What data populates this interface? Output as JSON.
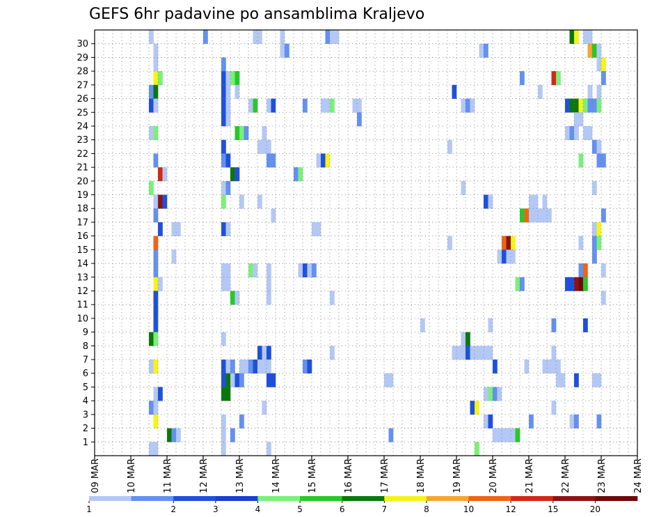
{
  "chart_data": {
    "type": "heatmap",
    "title": "GEFS 6hr padavine po ansamblima Kraljevo",
    "xlabel": "",
    "ylabel": "",
    "x_tick_labels": [
      "09 MAR",
      "10 MAR",
      "11 MAR",
      "12 MAR",
      "13 MAR",
      "14 MAR",
      "15 MAR",
      "16 MAR",
      "17 MAR",
      "18 MAR",
      "19 MAR",
      "20 MAR",
      "21 MAR",
      "22 MAR",
      "23 MAR",
      "24 MAR"
    ],
    "steps_per_day": 4,
    "y_tick_labels": [
      "1",
      "2",
      "3",
      "4",
      "5",
      "6",
      "7",
      "8",
      "9",
      "10",
      "11",
      "12",
      "13",
      "14",
      "15",
      "16",
      "17",
      "18",
      "19",
      "20",
      "21",
      "22",
      "23",
      "24",
      "25",
      "26",
      "27",
      "28",
      "29",
      "30"
    ],
    "grid": "dotted",
    "legend": {
      "position": "bottom",
      "boundaries": [
        "1",
        "2",
        "3",
        "4",
        "5",
        "6",
        "7",
        "8",
        "10",
        "12",
        "15",
        "20"
      ],
      "colors": [
        "#b4c8f5",
        "#6490f0",
        "#1e50dc",
        "#1b3fd0",
        "#7af07a",
        "#28c828",
        "#0a780a",
        "#f5f514",
        "#f5a532",
        "#f06414",
        "#d22814",
        "#8c1414",
        "#6e0a0a"
      ]
    },
    "cells": [
      [
        12,
        30,
        0
      ],
      [
        24,
        30,
        1
      ],
      [
        35,
        30,
        0
      ],
      [
        36,
        30,
        0
      ],
      [
        41,
        30,
        0
      ],
      [
        51,
        30,
        1
      ],
      [
        52,
        30,
        0
      ],
      [
        53,
        30,
        0
      ],
      [
        105,
        30,
        6
      ],
      [
        106,
        30,
        7
      ],
      [
        108,
        30,
        0
      ],
      [
        109,
        30,
        0
      ],
      [
        13,
        29,
        0
      ],
      [
        41,
        29,
        0
      ],
      [
        42,
        29,
        1
      ],
      [
        85,
        29,
        0
      ],
      [
        86,
        29,
        1
      ],
      [
        109,
        29,
        8
      ],
      [
        110,
        29,
        5
      ],
      [
        111,
        29,
        0
      ],
      [
        13,
        28,
        0
      ],
      [
        28,
        28,
        1
      ],
      [
        111,
        28,
        0
      ],
      [
        112,
        28,
        7
      ],
      [
        13,
        27,
        7
      ],
      [
        14,
        27,
        4
      ],
      [
        28,
        27,
        2
      ],
      [
        29,
        27,
        0
      ],
      [
        30,
        27,
        4
      ],
      [
        31,
        27,
        5
      ],
      [
        94,
        27,
        1
      ],
      [
        101,
        27,
        10
      ],
      [
        102,
        27,
        4
      ],
      [
        112,
        27,
        1
      ],
      [
        12,
        26,
        1
      ],
      [
        13,
        26,
        6
      ],
      [
        28,
        26,
        2
      ],
      [
        29,
        26,
        0
      ],
      [
        31,
        26,
        0
      ],
      [
        79,
        26,
        2
      ],
      [
        98,
        26,
        0
      ],
      [
        109,
        26,
        0
      ],
      [
        111,
        26,
        0
      ],
      [
        12,
        25,
        2
      ],
      [
        13,
        25,
        0
      ],
      [
        28,
        25,
        2
      ],
      [
        29,
        25,
        0
      ],
      [
        34,
        25,
        0
      ],
      [
        35,
        25,
        5
      ],
      [
        38,
        25,
        0
      ],
      [
        39,
        25,
        2
      ],
      [
        46,
        25,
        1
      ],
      [
        50,
        25,
        0
      ],
      [
        51,
        25,
        0
      ],
      [
        52,
        25,
        4
      ],
      [
        57,
        25,
        0
      ],
      [
        58,
        25,
        0
      ],
      [
        81,
        25,
        0
      ],
      [
        82,
        25,
        1
      ],
      [
        83,
        25,
        0
      ],
      [
        104,
        25,
        2
      ],
      [
        105,
        25,
        6
      ],
      [
        106,
        25,
        6
      ],
      [
        107,
        25,
        7
      ],
      [
        108,
        25,
        4
      ],
      [
        109,
        25,
        1
      ],
      [
        110,
        25,
        1
      ],
      [
        111,
        25,
        4
      ],
      [
        28,
        24,
        2
      ],
      [
        29,
        24,
        0
      ],
      [
        58,
        24,
        1
      ],
      [
        106,
        24,
        0
      ],
      [
        107,
        24,
        0
      ],
      [
        12,
        23,
        0
      ],
      [
        13,
        23,
        4
      ],
      [
        31,
        23,
        5
      ],
      [
        32,
        23,
        4
      ],
      [
        33,
        23,
        1
      ],
      [
        37,
        23,
        0
      ],
      [
        104,
        23,
        0
      ],
      [
        105,
        23,
        1
      ],
      [
        106,
        23,
        0
      ],
      [
        108,
        23,
        0
      ],
      [
        109,
        23,
        0
      ],
      [
        28,
        22,
        2
      ],
      [
        36,
        22,
        0
      ],
      [
        37,
        22,
        0
      ],
      [
        38,
        22,
        0
      ],
      [
        78,
        22,
        0
      ],
      [
        110,
        22,
        1
      ],
      [
        111,
        22,
        0
      ],
      [
        13,
        21,
        1
      ],
      [
        28,
        21,
        1
      ],
      [
        29,
        21,
        2
      ],
      [
        38,
        21,
        1
      ],
      [
        39,
        21,
        1
      ],
      [
        49,
        21,
        0
      ],
      [
        50,
        21,
        2
      ],
      [
        51,
        21,
        7
      ],
      [
        107,
        21,
        4
      ],
      [
        111,
        21,
        1
      ],
      [
        112,
        21,
        1
      ],
      [
        14,
        20,
        10
      ],
      [
        15,
        20,
        0
      ],
      [
        30,
        20,
        6
      ],
      [
        31,
        20,
        2
      ],
      [
        44,
        20,
        1
      ],
      [
        45,
        20,
        4
      ],
      [
        12,
        19,
        4
      ],
      [
        28,
        19,
        0
      ],
      [
        29,
        19,
        1
      ],
      [
        81,
        19,
        0
      ],
      [
        110,
        19,
        0
      ],
      [
        13,
        18,
        0
      ],
      [
        14,
        18,
        11
      ],
      [
        15,
        18,
        2
      ],
      [
        28,
        18,
        4
      ],
      [
        32,
        18,
        0
      ],
      [
        36,
        18,
        0
      ],
      [
        86,
        18,
        2
      ],
      [
        87,
        18,
        0
      ],
      [
        96,
        18,
        0
      ],
      [
        97,
        18,
        0
      ],
      [
        99,
        18,
        0
      ],
      [
        13,
        17,
        1
      ],
      [
        39,
        17,
        0
      ],
      [
        94,
        17,
        5
      ],
      [
        95,
        17,
        9
      ],
      [
        96,
        17,
        0
      ],
      [
        97,
        17,
        0
      ],
      [
        98,
        17,
        0
      ],
      [
        99,
        17,
        0
      ],
      [
        100,
        17,
        0
      ],
      [
        112,
        17,
        1
      ],
      [
        14,
        16,
        2
      ],
      [
        17,
        16,
        0
      ],
      [
        18,
        16,
        0
      ],
      [
        28,
        16,
        2
      ],
      [
        29,
        16,
        0
      ],
      [
        48,
        16,
        0
      ],
      [
        49,
        16,
        0
      ],
      [
        110,
        16,
        0
      ],
      [
        111,
        16,
        7
      ],
      [
        13,
        15,
        9
      ],
      [
        78,
        15,
        0
      ],
      [
        90,
        15,
        9
      ],
      [
        91,
        15,
        11
      ],
      [
        92,
        15,
        7
      ],
      [
        107,
        15,
        0
      ],
      [
        110,
        15,
        1
      ],
      [
        111,
        15,
        4
      ],
      [
        13,
        14,
        1
      ],
      [
        17,
        14,
        0
      ],
      [
        89,
        14,
        0
      ],
      [
        90,
        14,
        2
      ],
      [
        91,
        14,
        0
      ],
      [
        92,
        14,
        0
      ],
      [
        110,
        14,
        1
      ],
      [
        13,
        13,
        1
      ],
      [
        28,
        13,
        0
      ],
      [
        29,
        13,
        0
      ],
      [
        34,
        13,
        4
      ],
      [
        35,
        13,
        0
      ],
      [
        38,
        13,
        0
      ],
      [
        45,
        13,
        0
      ],
      [
        46,
        13,
        2
      ],
      [
        47,
        13,
        0
      ],
      [
        48,
        13,
        1
      ],
      [
        107,
        13,
        1
      ],
      [
        108,
        13,
        9
      ],
      [
        112,
        13,
        0
      ],
      [
        13,
        12,
        7
      ],
      [
        14,
        12,
        0
      ],
      [
        28,
        12,
        0
      ],
      [
        29,
        12,
        0
      ],
      [
        38,
        12,
        0
      ],
      [
        93,
        12,
        4
      ],
      [
        94,
        12,
        1
      ],
      [
        104,
        12,
        2
      ],
      [
        105,
        12,
        2
      ],
      [
        106,
        12,
        11
      ],
      [
        107,
        12,
        12
      ],
      [
        108,
        12,
        5
      ],
      [
        13,
        11,
        2
      ],
      [
        30,
        11,
        5
      ],
      [
        31,
        11,
        0
      ],
      [
        38,
        11,
        0
      ],
      [
        52,
        11,
        0
      ],
      [
        112,
        11,
        0
      ],
      [
        13,
        10,
        2
      ],
      [
        13,
        9,
        2
      ],
      [
        72,
        9,
        0
      ],
      [
        87,
        9,
        0
      ],
      [
        101,
        9,
        1
      ],
      [
        108,
        9,
        2
      ],
      [
        12,
        8,
        6
      ],
      [
        13,
        8,
        4
      ],
      [
        28,
        8,
        0
      ],
      [
        81,
        8,
        0
      ],
      [
        82,
        8,
        6
      ],
      [
        36,
        7,
        2
      ],
      [
        37,
        7,
        0
      ],
      [
        38,
        7,
        2
      ],
      [
        52,
        7,
        0
      ],
      [
        79,
        7,
        0
      ],
      [
        80,
        7,
        0
      ],
      [
        81,
        7,
        0
      ],
      [
        82,
        7,
        2
      ],
      [
        83,
        7,
        0
      ],
      [
        84,
        7,
        0
      ],
      [
        85,
        7,
        0
      ],
      [
        86,
        7,
        0
      ],
      [
        87,
        7,
        0
      ],
      [
        101,
        7,
        0
      ],
      [
        12,
        6,
        0
      ],
      [
        13,
        6,
        7
      ],
      [
        28,
        6,
        2
      ],
      [
        29,
        6,
        0
      ],
      [
        30,
        6,
        1
      ],
      [
        32,
        6,
        0
      ],
      [
        33,
        6,
        0
      ],
      [
        34,
        6,
        1
      ],
      [
        35,
        6,
        2
      ],
      [
        36,
        6,
        0
      ],
      [
        37,
        6,
        0
      ],
      [
        38,
        6,
        0
      ],
      [
        46,
        6,
        1
      ],
      [
        47,
        6,
        2
      ],
      [
        88,
        6,
        2
      ],
      [
        95,
        6,
        0
      ],
      [
        99,
        6,
        0
      ],
      [
        100,
        6,
        0
      ],
      [
        101,
        6,
        0
      ],
      [
        102,
        6,
        0
      ],
      [
        28,
        5,
        2
      ],
      [
        29,
        5,
        6
      ],
      [
        30,
        5,
        0
      ],
      [
        31,
        5,
        2
      ],
      [
        32,
        5,
        1
      ],
      [
        38,
        5,
        2
      ],
      [
        39,
        5,
        2
      ],
      [
        64,
        5,
        0
      ],
      [
        65,
        5,
        0
      ],
      [
        102,
        5,
        0
      ],
      [
        103,
        5,
        0
      ],
      [
        106,
        5,
        2
      ],
      [
        110,
        5,
        0
      ],
      [
        111,
        5,
        0
      ],
      [
        13,
        4,
        0
      ],
      [
        14,
        4,
        2
      ],
      [
        28,
        4,
        6
      ],
      [
        29,
        4,
        6
      ],
      [
        86,
        4,
        0
      ],
      [
        87,
        4,
        4
      ],
      [
        88,
        4,
        1
      ],
      [
        89,
        4,
        0
      ],
      [
        12,
        3,
        1
      ],
      [
        13,
        3,
        0
      ],
      [
        37,
        3,
        0
      ],
      [
        83,
        3,
        2
      ],
      [
        84,
        3,
        7
      ],
      [
        101,
        3,
        0
      ],
      [
        13,
        2,
        7
      ],
      [
        28,
        2,
        0
      ],
      [
        32,
        2,
        1
      ],
      [
        86,
        2,
        0
      ],
      [
        87,
        2,
        2
      ],
      [
        96,
        2,
        1
      ],
      [
        105,
        2,
        0
      ],
      [
        106,
        2,
        1
      ],
      [
        111,
        2,
        1
      ],
      [
        16,
        1,
        6
      ],
      [
        17,
        1,
        1
      ],
      [
        18,
        1,
        0
      ],
      [
        28,
        1,
        0
      ],
      [
        30,
        1,
        1
      ],
      [
        65,
        1,
        1
      ],
      [
        88,
        1,
        0
      ],
      [
        89,
        1,
        0
      ],
      [
        90,
        1,
        0
      ],
      [
        91,
        1,
        0
      ],
      [
        92,
        1,
        0
      ],
      [
        93,
        1,
        5
      ],
      [
        12,
        0,
        0
      ],
      [
        13,
        0,
        0
      ],
      [
        28,
        0,
        0
      ],
      [
        38,
        0,
        0
      ],
      [
        84,
        0,
        4
      ]
    ]
  }
}
